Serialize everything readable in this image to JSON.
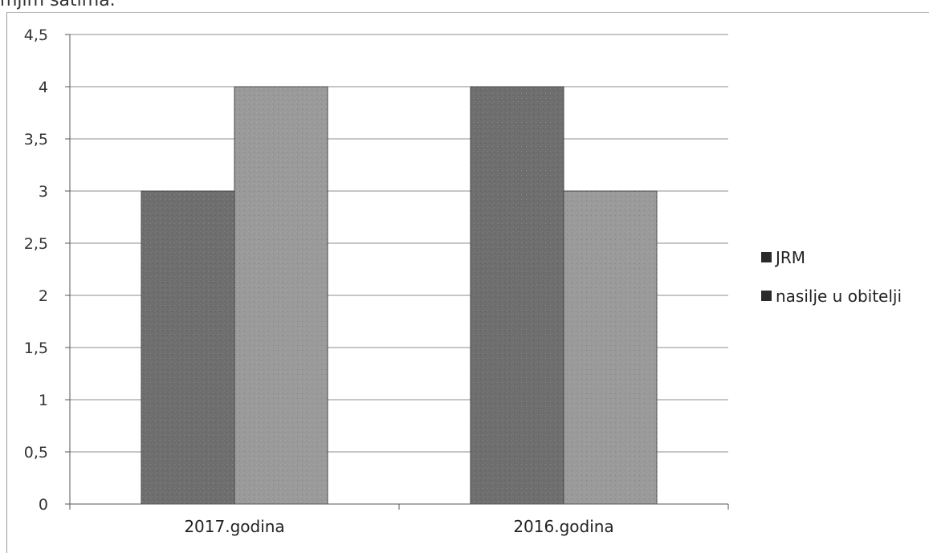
{
  "caption": "mjim satima.",
  "chart_data": {
    "type": "bar",
    "categories": [
      "2017.godina",
      "2016.godina"
    ],
    "series": [
      {
        "name": "JRM",
        "values": [
          3,
          4
        ]
      },
      {
        "name": "nasilje u obitelji",
        "values": [
          4,
          3
        ]
      }
    ],
    "ylim": [
      0,
      4.5
    ],
    "yticks": [
      "0",
      "0,5",
      "1",
      "1,5",
      "2",
      "2,5",
      "3",
      "3,5",
      "4",
      "4,5"
    ],
    "grid": true,
    "legend_position": "right",
    "colors": {
      "JRM": "#6e6e6e",
      "nasilje u obitelji": "#9a9a9a"
    }
  }
}
